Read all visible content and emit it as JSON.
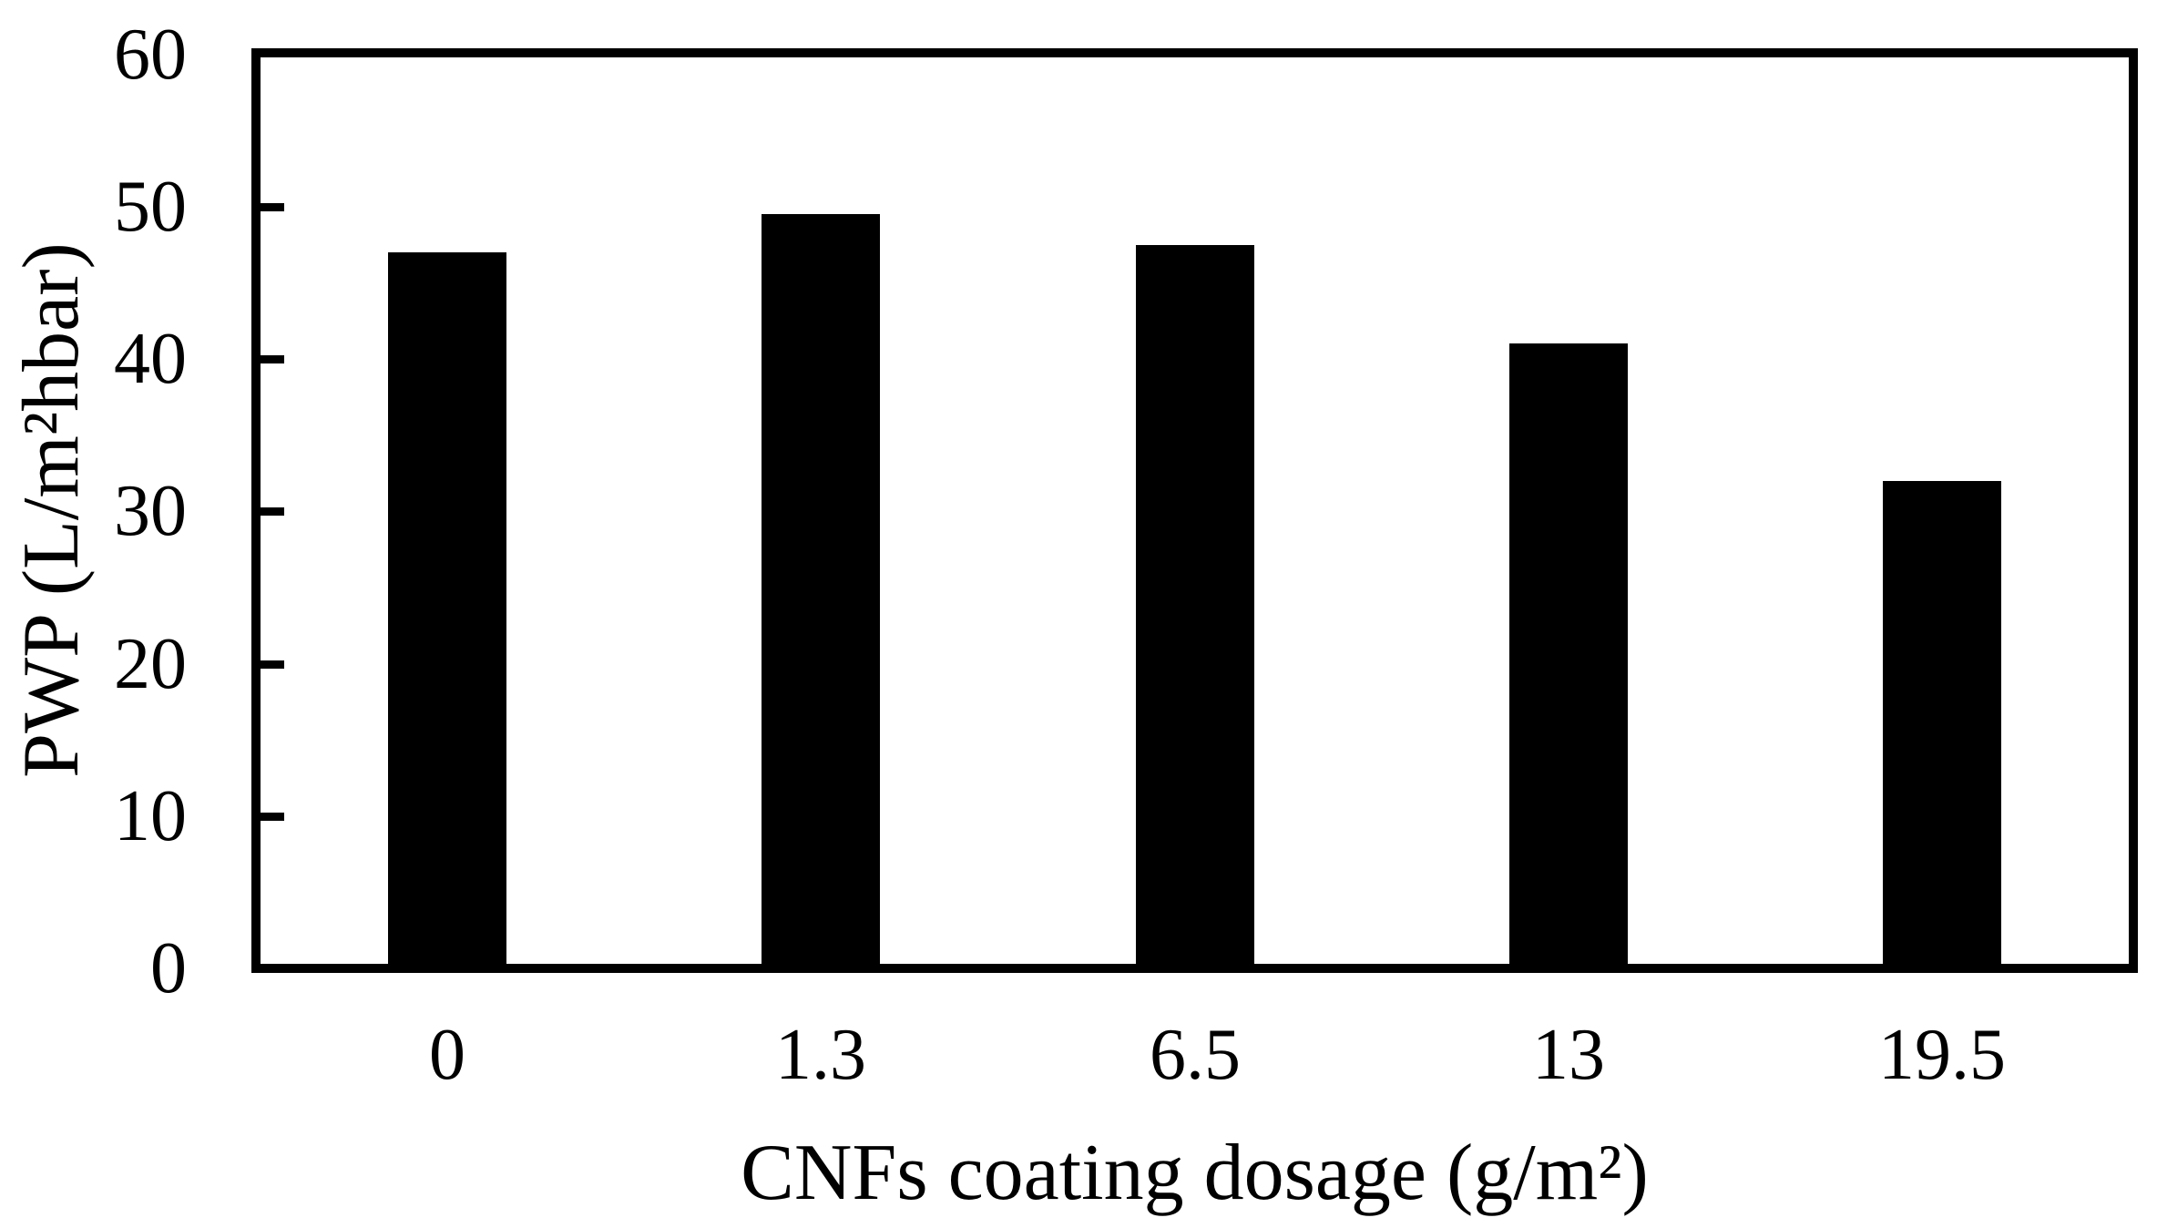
{
  "chart_data": {
    "type": "bar",
    "title": "",
    "categories": [
      "0",
      "1.3",
      "6.5",
      "13",
      "19.5"
    ],
    "values": [
      47,
      49.5,
      47.5,
      41,
      32
    ],
    "series_name": "PWP",
    "xlabel": "CNFs coating dosage (g/m²)",
    "ylabel": "PWP (L/m²hbar)",
    "ylim": [
      0,
      60
    ],
    "yticks": [
      0,
      10,
      20,
      30,
      40,
      50,
      60
    ],
    "grid": false,
    "legend_position": "none",
    "bar_color": "#000000",
    "axis_color": "#000000",
    "background_color": "#ffffff"
  }
}
